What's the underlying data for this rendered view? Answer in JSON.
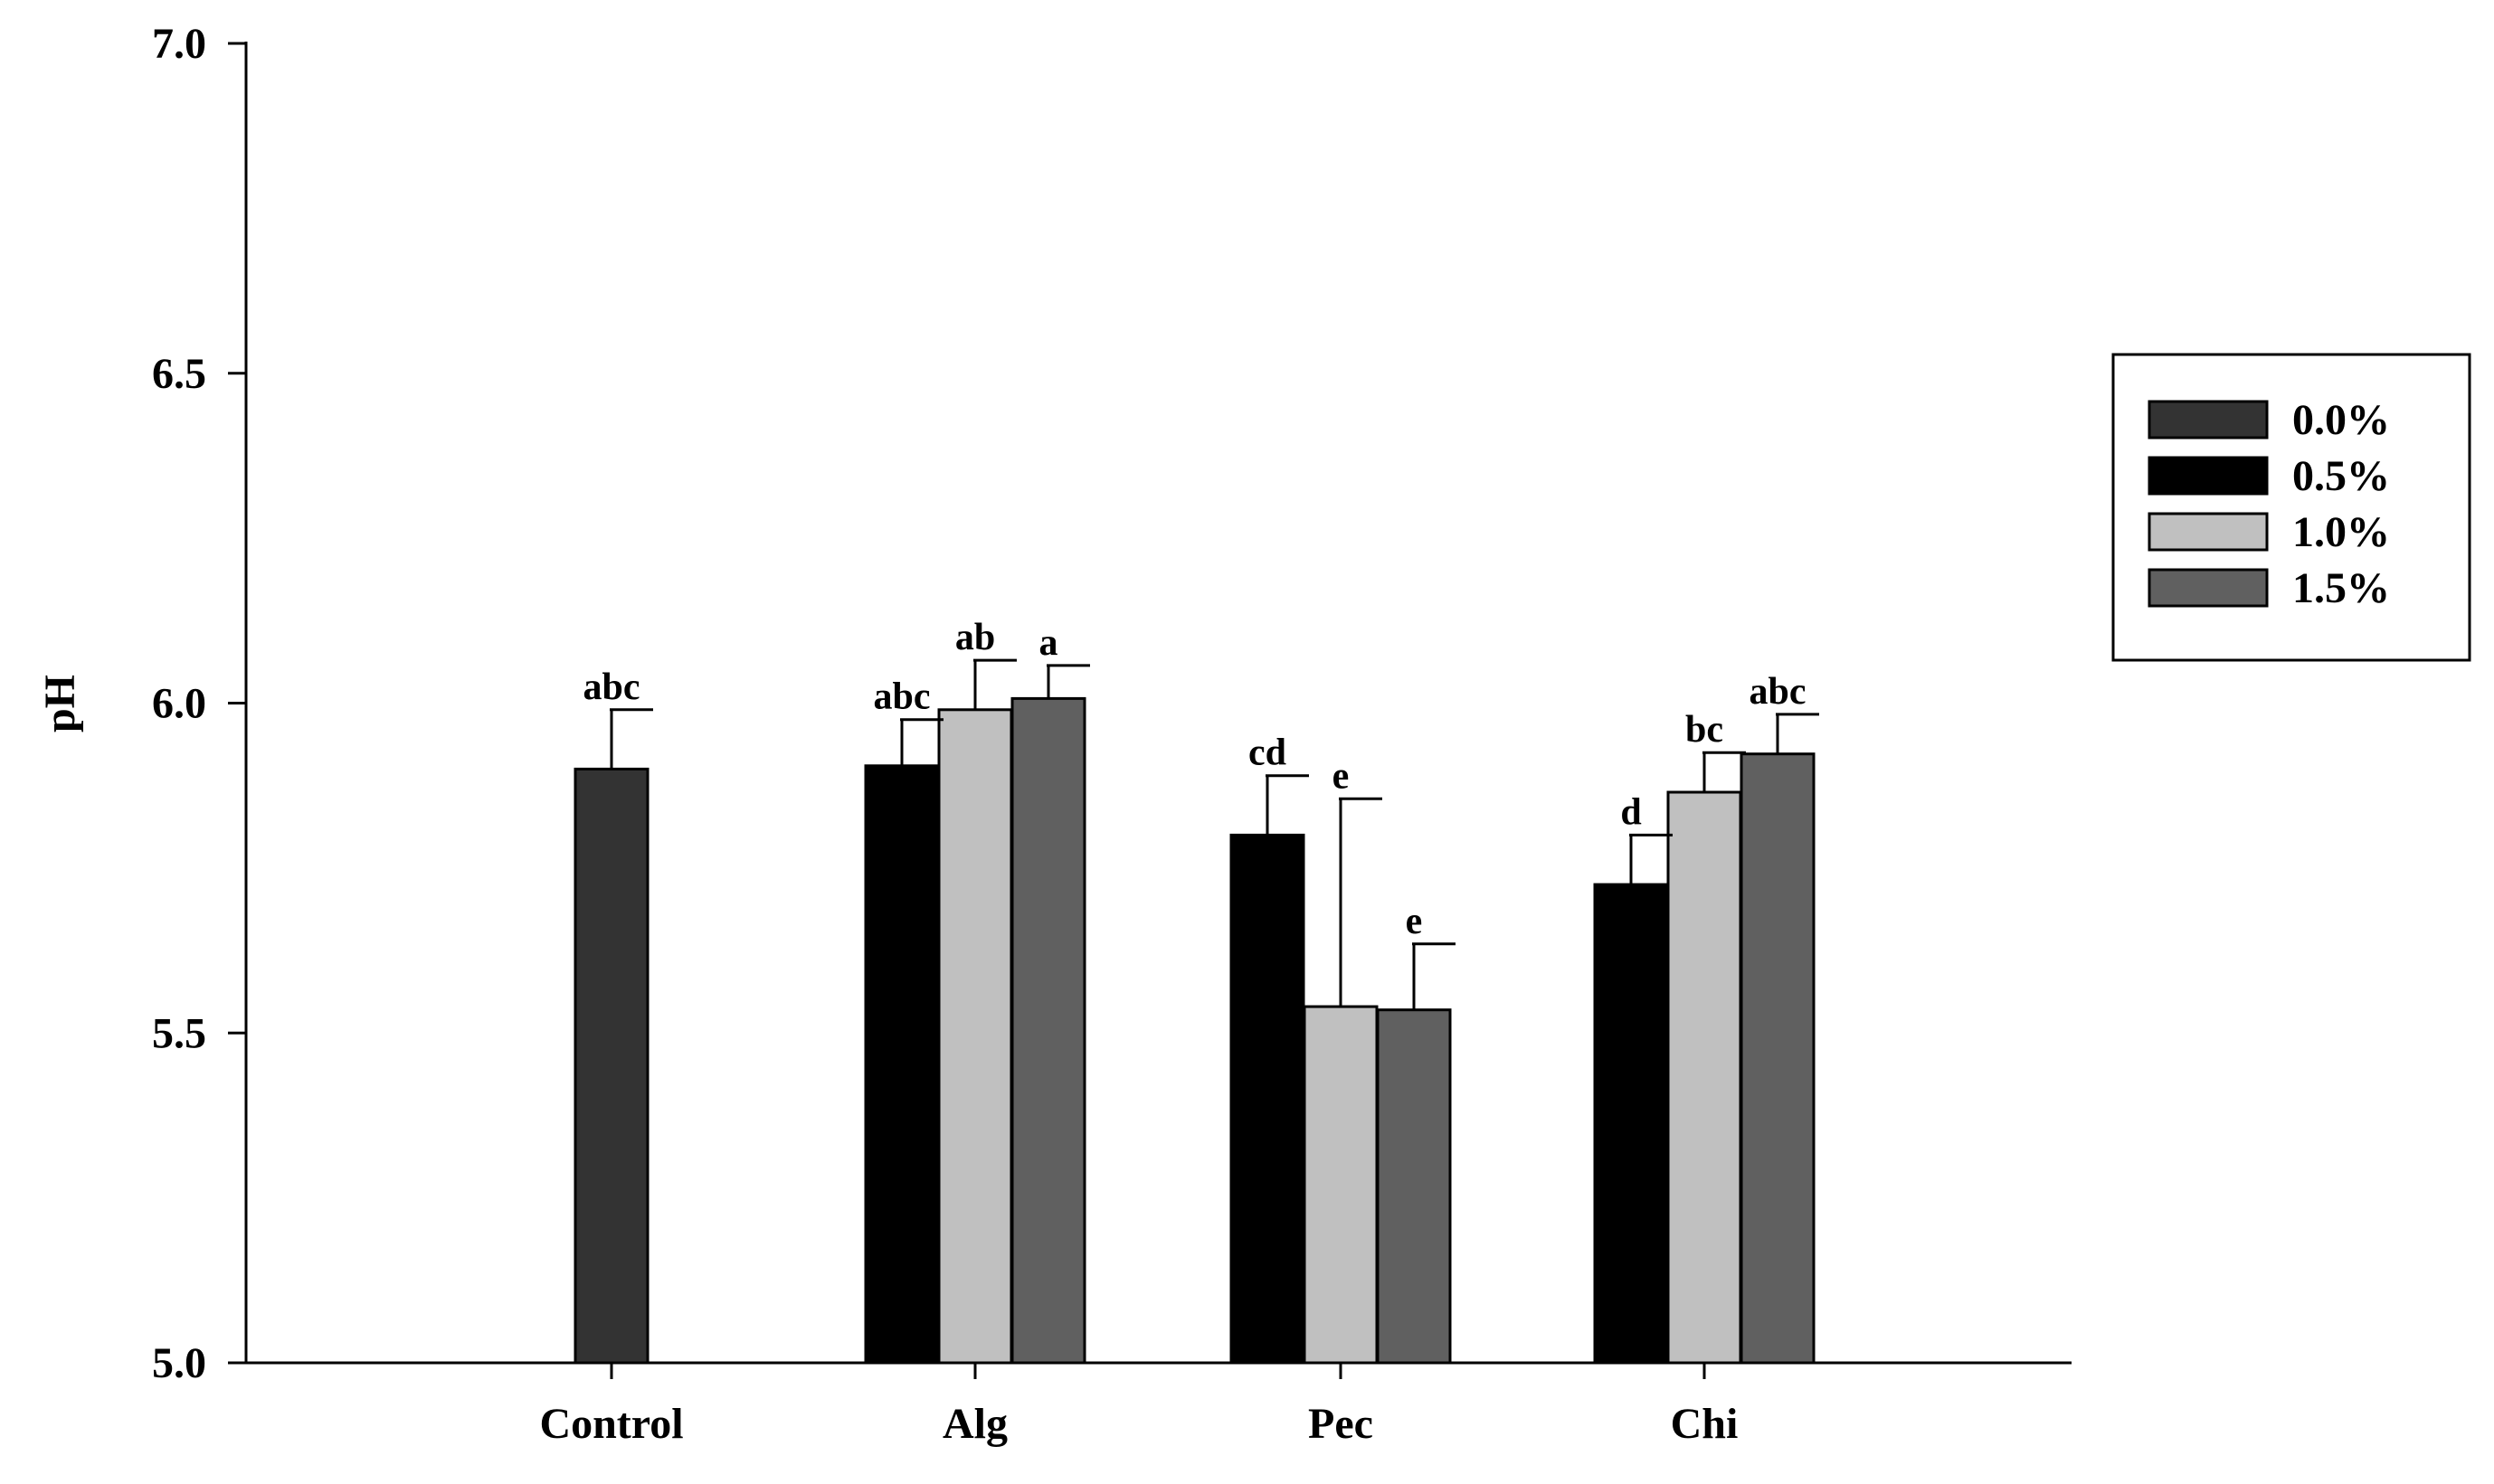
{
  "chart_data": {
    "type": "bar",
    "title": "",
    "xlabel": "",
    "ylabel": "pH",
    "ylim": [
      5.0,
      7.0
    ],
    "yticks": [
      "5.0",
      "5.5",
      "6.0",
      "6.5",
      "7.0"
    ],
    "grid": false,
    "legend_position": "right",
    "categories": [
      "Control",
      "Alg",
      "Pec",
      "Chi"
    ],
    "series": [
      {
        "name": "0.0%",
        "color": "#333333",
        "values": [
          5.9,
          null,
          null,
          null
        ],
        "errors": [
          0.09,
          null,
          null,
          null
        ],
        "letters": [
          "abc",
          null,
          null,
          null
        ]
      },
      {
        "name": "0.5%",
        "color": "#000000",
        "values": [
          null,
          5.905,
          5.8,
          5.725
        ],
        "errors": [
          null,
          0.07,
          0.09,
          0.075
        ],
        "letters": [
          null,
          "abc",
          "cd",
          "d"
        ]
      },
      {
        "name": "1.0%",
        "color": "#c0c0c0",
        "values": [
          null,
          5.99,
          5.54,
          5.865
        ],
        "errors": [
          null,
          0.075,
          0.315,
          0.06
        ],
        "letters": [
          null,
          "ab",
          "e",
          "bc"
        ]
      },
      {
        "name": "1.5%",
        "color": "#606060",
        "values": [
          null,
          6.007,
          5.535,
          5.923
        ],
        "errors": [
          null,
          0.05,
          0.1,
          0.06
        ],
        "letters": [
          null,
          "a",
          "e",
          "abc"
        ]
      }
    ]
  }
}
